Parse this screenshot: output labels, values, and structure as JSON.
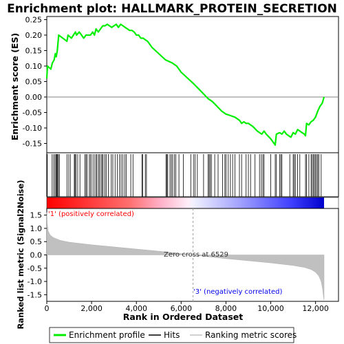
{
  "chart_data": {
    "type": "line",
    "title": "Enrichment plot: HALLMARK_PROTEIN_SECRETION",
    "top_panel": {
      "ylabel": "Enrichment score (ES)",
      "ylim": [
        -0.18,
        0.26
      ],
      "yticks": [
        -0.15,
        -0.1,
        -0.05,
        0.0,
        0.05,
        0.1,
        0.15,
        0.2,
        0.25
      ],
      "ytick_labels": [
        "-0.15",
        "-0.10",
        "-0.05",
        "0.00",
        "0.05",
        "0.10",
        "0.15",
        "0.20",
        "0.25"
      ],
      "series": [
        {
          "name": "Enrichment profile",
          "color": "#00ee00",
          "x": [
            0,
            30,
            180,
            250,
            330,
            380,
            420,
            470,
            530,
            900,
            950,
            1100,
            1280,
            1330,
            1450,
            1550,
            1650,
            1750,
            1850,
            1950,
            2050,
            2130,
            2200,
            2300,
            2400,
            2500,
            2600,
            2700,
            2800,
            2900,
            3000,
            3100,
            3200,
            3300,
            3400,
            3500,
            3600,
            3700,
            3800,
            3900,
            4000,
            4100,
            4200,
            4300,
            4400,
            4500,
            4700,
            5000,
            5300,
            5450,
            5600,
            5800,
            6000,
            6300,
            6529,
            6800,
            7000,
            7200,
            7400,
            7600,
            7800,
            8000,
            8200,
            8400,
            8600,
            8700,
            8800,
            8900,
            9000,
            9200,
            9400,
            9600,
            9700,
            9800,
            10000,
            10100,
            10200,
            10250,
            10400,
            10500,
            10600,
            10700,
            10800,
            10900,
            11000,
            11100,
            11200,
            11300,
            11400,
            11500,
            11550,
            11600,
            11700,
            11800,
            11900,
            12000,
            12100,
            12200,
            12300,
            12380
          ],
          "y": [
            0.06,
            0.1,
            0.09,
            0.11,
            0.12,
            0.14,
            0.13,
            0.15,
            0.2,
            0.18,
            0.2,
            0.19,
            0.21,
            0.2,
            0.21,
            0.2,
            0.19,
            0.2,
            0.2,
            0.2,
            0.21,
            0.2,
            0.22,
            0.21,
            0.22,
            0.23,
            0.23,
            0.235,
            0.23,
            0.225,
            0.23,
            0.235,
            0.225,
            0.235,
            0.23,
            0.225,
            0.22,
            0.215,
            0.215,
            0.21,
            0.2,
            0.2,
            0.19,
            0.19,
            0.185,
            0.18,
            0.16,
            0.14,
            0.12,
            0.115,
            0.11,
            0.1,
            0.08,
            0.06,
            0.045,
            0.025,
            0.01,
            -0.005,
            -0.015,
            -0.03,
            -0.045,
            -0.055,
            -0.06,
            -0.065,
            -0.075,
            -0.085,
            -0.08,
            -0.085,
            -0.085,
            -0.095,
            -0.11,
            -0.12,
            -0.11,
            -0.12,
            -0.135,
            -0.145,
            -0.155,
            -0.12,
            -0.115,
            -0.12,
            -0.11,
            -0.12,
            -0.125,
            -0.13,
            -0.115,
            -0.12,
            -0.105,
            -0.11,
            -0.115,
            -0.12,
            -0.125,
            -0.085,
            -0.09,
            -0.08,
            -0.075,
            -0.065,
            -0.045,
            -0.03,
            -0.02,
            0.0
          ]
        }
      ]
    },
    "hits_panel": {
      "legend_name": "Hits",
      "color": "#000000",
      "positions": [
        20,
        240,
        310,
        370,
        420,
        450,
        480,
        520,
        560,
        900,
        980,
        1050,
        1230,
        1260,
        1300,
        1380,
        1480,
        1700,
        1750,
        1800,
        1900,
        1950,
        2020,
        2100,
        2180,
        2230,
        2300,
        2350,
        2420,
        2470,
        2520,
        2600,
        2660,
        2750,
        2880,
        2950,
        3050,
        3150,
        3250,
        3320,
        3400,
        3480,
        3550,
        3750,
        3850,
        4250,
        4280,
        4400,
        4450,
        5320,
        5360,
        5400,
        5500,
        5560,
        5620,
        5700,
        5760,
        5900,
        6100,
        6430,
        6550,
        6620,
        6720,
        7000,
        7200,
        7250,
        7300,
        7350,
        7500,
        7650,
        7850,
        7950,
        8000,
        8100,
        8200,
        8300,
        8400,
        8600,
        8700,
        8900,
        9000,
        9100,
        9300,
        9500,
        9580,
        9650,
        9700,
        10000,
        10200,
        10250,
        10400,
        10450,
        10500,
        10850,
        11000,
        11050,
        11100,
        11200,
        11300,
        11550,
        11600,
        11700,
        11800,
        11850,
        11900,
        11950,
        12000,
        12050,
        12100,
        12150,
        12250
      ]
    },
    "ranking_panel": {
      "ylabel": "Ranked list metric (Signal2Noise)",
      "xlabel": "Rank in Ordered Dataset",
      "legend_name": "Ranking metric scores",
      "color": "#c0c0c0",
      "ylim": [
        -1.75,
        1.75
      ],
      "yticks": [
        -1.5,
        -1.0,
        -0.5,
        0.0,
        0.5,
        1.0,
        1.5
      ],
      "ytick_labels": [
        "-1.5",
        "-1.0",
        "-0.5",
        "0.0",
        "0.5",
        "1.0",
        "1.5"
      ],
      "x": [
        0,
        20,
        60,
        150,
        300,
        600,
        1000,
        2000,
        3000,
        4000,
        5000,
        6000,
        6529,
        7000,
        8000,
        9000,
        10000,
        11000,
        11500,
        11800,
        12000,
        12150,
        12250,
        12320,
        12360,
        12380
      ],
      "values": [
        1.6,
        1.2,
        0.9,
        0.75,
        0.65,
        0.55,
        0.48,
        0.38,
        0.3,
        0.22,
        0.14,
        0.05,
        0.0,
        -0.05,
        -0.14,
        -0.22,
        -0.3,
        -0.4,
        -0.47,
        -0.55,
        -0.65,
        -0.8,
        -1.0,
        -1.3,
        -1.6,
        -1.7
      ],
      "zero_cross_label": "Zero cross at 6529",
      "zero_cross": 6529,
      "pos_label": "'1' (positively correlated)",
      "neg_label": "'3' (negatively correlated)",
      "pos_color": "#ff0000",
      "neg_color": "#0000ee"
    },
    "x_axis": {
      "xlim": [
        0,
        12380
      ],
      "xticks": [
        0,
        2000,
        4000,
        6000,
        8000,
        10000,
        12000
      ],
      "xtick_labels": [
        "0",
        "2,000",
        "4,000",
        "6,000",
        "8,000",
        "10,000",
        "12,000"
      ]
    },
    "legend": [
      "Enrichment profile",
      "Hits",
      "Ranking metric scores"
    ]
  }
}
